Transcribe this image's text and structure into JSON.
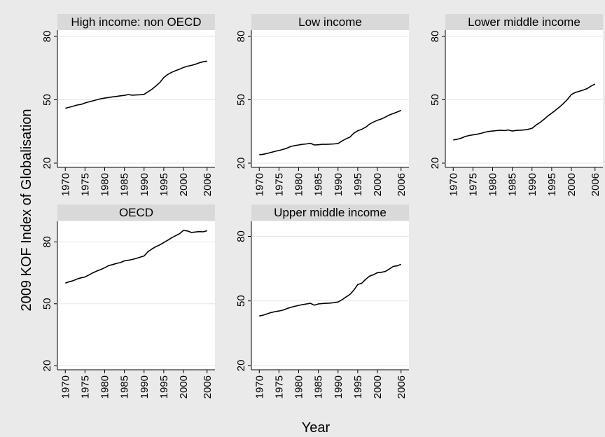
{
  "figure": {
    "ylabel": "2009 KOF Index of Globalisation",
    "xlabel": "Year",
    "background_color": "#eaeaea",
    "plot_background_color": "#ffffff",
    "header_color": "#d9d9d9",
    "line_color": "#000000"
  },
  "chart_data": [
    {
      "type": "line",
      "title": "High income: non OECD",
      "x": [
        1970,
        1971,
        1972,
        1973,
        1974,
        1975,
        1976,
        1977,
        1978,
        1979,
        1980,
        1981,
        1982,
        1983,
        1984,
        1985,
        1986,
        1987,
        1988,
        1989,
        1990,
        1991,
        1992,
        1993,
        1994,
        1995,
        1996,
        1997,
        1998,
        1999,
        2000,
        2001,
        2002,
        2003,
        2004,
        2005,
        2006
      ],
      "series": [
        {
          "values": [
            46,
            46.5,
            47,
            47.5,
            47.8,
            48.5,
            49,
            49.5,
            50,
            50.5,
            50.8,
            51.1,
            51.4,
            51.6,
            51.9,
            52.1,
            52.5,
            52.2,
            52.3,
            52.4,
            52.6,
            53.8,
            55,
            56.5,
            58.2,
            60.5,
            62,
            63,
            63.8,
            64.5,
            65.3,
            65.9,
            66.3,
            66.8,
            67.5,
            68,
            68.3
          ]
        }
      ],
      "xticks": [
        "1970",
        "1975",
        "1980",
        "1985",
        "1990",
        "1995",
        "2000",
        "2006"
      ],
      "yticks": [
        "20",
        "50",
        "80"
      ],
      "ylim": [
        18,
        83
      ],
      "xlim": [
        1968,
        2008
      ]
    },
    {
      "type": "line",
      "title": "Low income",
      "x": [
        1970,
        1971,
        1972,
        1973,
        1974,
        1975,
        1976,
        1977,
        1978,
        1979,
        1980,
        1981,
        1982,
        1983,
        1984,
        1985,
        1986,
        1987,
        1988,
        1989,
        1990,
        1991,
        1992,
        1993,
        1994,
        1995,
        1996,
        1997,
        1998,
        1999,
        2000,
        2001,
        2002,
        2003,
        2004,
        2005,
        2006
      ],
      "series": [
        {
          "values": [
            24,
            24.2,
            24.6,
            25.1,
            25.6,
            26,
            26.5,
            27.1,
            27.9,
            28.3,
            28.6,
            28.9,
            29.1,
            29.4,
            28.6,
            28.7,
            28.9,
            28.9,
            29,
            29.1,
            29.3,
            30.5,
            31.5,
            32.3,
            34.2,
            35.3,
            36,
            37,
            38.5,
            39.5,
            40.3,
            40.9,
            41.8,
            42.8,
            43.5,
            44.2,
            45
          ]
        }
      ],
      "xticks": [
        "1970",
        "1975",
        "1980",
        "1985",
        "1990",
        "1995",
        "2000",
        "2006"
      ],
      "yticks": [
        "20",
        "50",
        "80"
      ],
      "ylim": [
        18,
        83
      ],
      "xlim": [
        1968,
        2008
      ]
    },
    {
      "type": "line",
      "title": "Lower middle income",
      "x": [
        1970,
        1971,
        1972,
        1973,
        1974,
        1975,
        1976,
        1977,
        1978,
        1979,
        1980,
        1981,
        1982,
        1983,
        1984,
        1985,
        1986,
        1987,
        1988,
        1989,
        1990,
        1991,
        1992,
        1993,
        1994,
        1995,
        1996,
        1997,
        1998,
        1999,
        2000,
        2001,
        2002,
        2003,
        2004,
        2005,
        2006
      ],
      "series": [
        {
          "values": [
            31,
            31.3,
            31.8,
            32.6,
            33.1,
            33.4,
            33.7,
            34.1,
            34.6,
            35,
            35.2,
            35.4,
            35.6,
            35.4,
            35.7,
            35.2,
            35.5,
            35.6,
            35.7,
            36,
            36.5,
            38,
            39.2,
            40.7,
            42.3,
            43.7,
            45.1,
            46.6,
            48.3,
            50.2,
            52.5,
            53.5,
            54,
            54.6,
            55.3,
            56.5,
            57.5
          ]
        }
      ],
      "xticks": [
        "1970",
        "1975",
        "1980",
        "1985",
        "1990",
        "1995",
        "2000",
        "2006"
      ],
      "yticks": [
        "20",
        "50",
        "80"
      ],
      "ylim": [
        18,
        83
      ],
      "xlim": [
        1968,
        2008
      ]
    },
    {
      "type": "line",
      "title": "OECD",
      "x": [
        1970,
        1971,
        1972,
        1973,
        1974,
        1975,
        1976,
        1977,
        1978,
        1979,
        1980,
        1981,
        1982,
        1983,
        1984,
        1985,
        1986,
        1987,
        1988,
        1989,
        1990,
        1991,
        1992,
        1993,
        1994,
        1995,
        1996,
        1997,
        1998,
        1999,
        2000,
        2001,
        2002,
        2003,
        2004,
        2005,
        2006
      ],
      "series": [
        {
          "values": [
            60,
            60.7,
            61.2,
            62,
            62.6,
            63,
            64,
            65,
            65.9,
            66.6,
            67.5,
            68.5,
            69,
            69.6,
            70,
            70.8,
            71.1,
            71.5,
            72,
            72.6,
            73.2,
            75.3,
            76.6,
            77.7,
            78.6,
            79.7,
            80.8,
            82,
            83,
            84,
            85.6,
            85.3,
            84.6,
            84.8,
            85,
            84.9,
            85.4
          ]
        }
      ],
      "xticks": [
        "1970",
        "1975",
        "1980",
        "1985",
        "1990",
        "1995",
        "2000",
        "2006"
      ],
      "yticks": [
        "20",
        "50",
        "80"
      ],
      "ylim": [
        18,
        90
      ],
      "xlim": [
        1968,
        2008
      ]
    },
    {
      "type": "line",
      "title": "Upper middle income",
      "x": [
        1970,
        1971,
        1972,
        1973,
        1974,
        1975,
        1976,
        1977,
        1978,
        1979,
        1980,
        1981,
        1982,
        1983,
        1984,
        1985,
        1986,
        1987,
        1988,
        1989,
        1990,
        1991,
        1992,
        1993,
        1994,
        1995,
        1996,
        1997,
        1998,
        1999,
        2000,
        2001,
        2002,
        2003,
        2004,
        2005,
        2006
      ],
      "series": [
        {
          "values": [
            43,
            43.4,
            44,
            44.6,
            45,
            45.3,
            45.7,
            46.4,
            47,
            47.5,
            47.9,
            48.3,
            48.6,
            48.9,
            48,
            48.6,
            48.8,
            48.9,
            49,
            49.2,
            49.5,
            50.5,
            51.8,
            53,
            55,
            57.6,
            58.2,
            60,
            61.5,
            62.2,
            63.1,
            63.3,
            63.7,
            64.8,
            66,
            66.3,
            67
          ]
        }
      ],
      "xticks": [
        "1970",
        "1975",
        "1980",
        "1985",
        "1990",
        "1995",
        "2000",
        "2006"
      ],
      "yticks": [
        "20",
        "50",
        "80"
      ],
      "ylim": [
        18,
        87
      ],
      "xlim": [
        1968,
        2008
      ]
    }
  ]
}
